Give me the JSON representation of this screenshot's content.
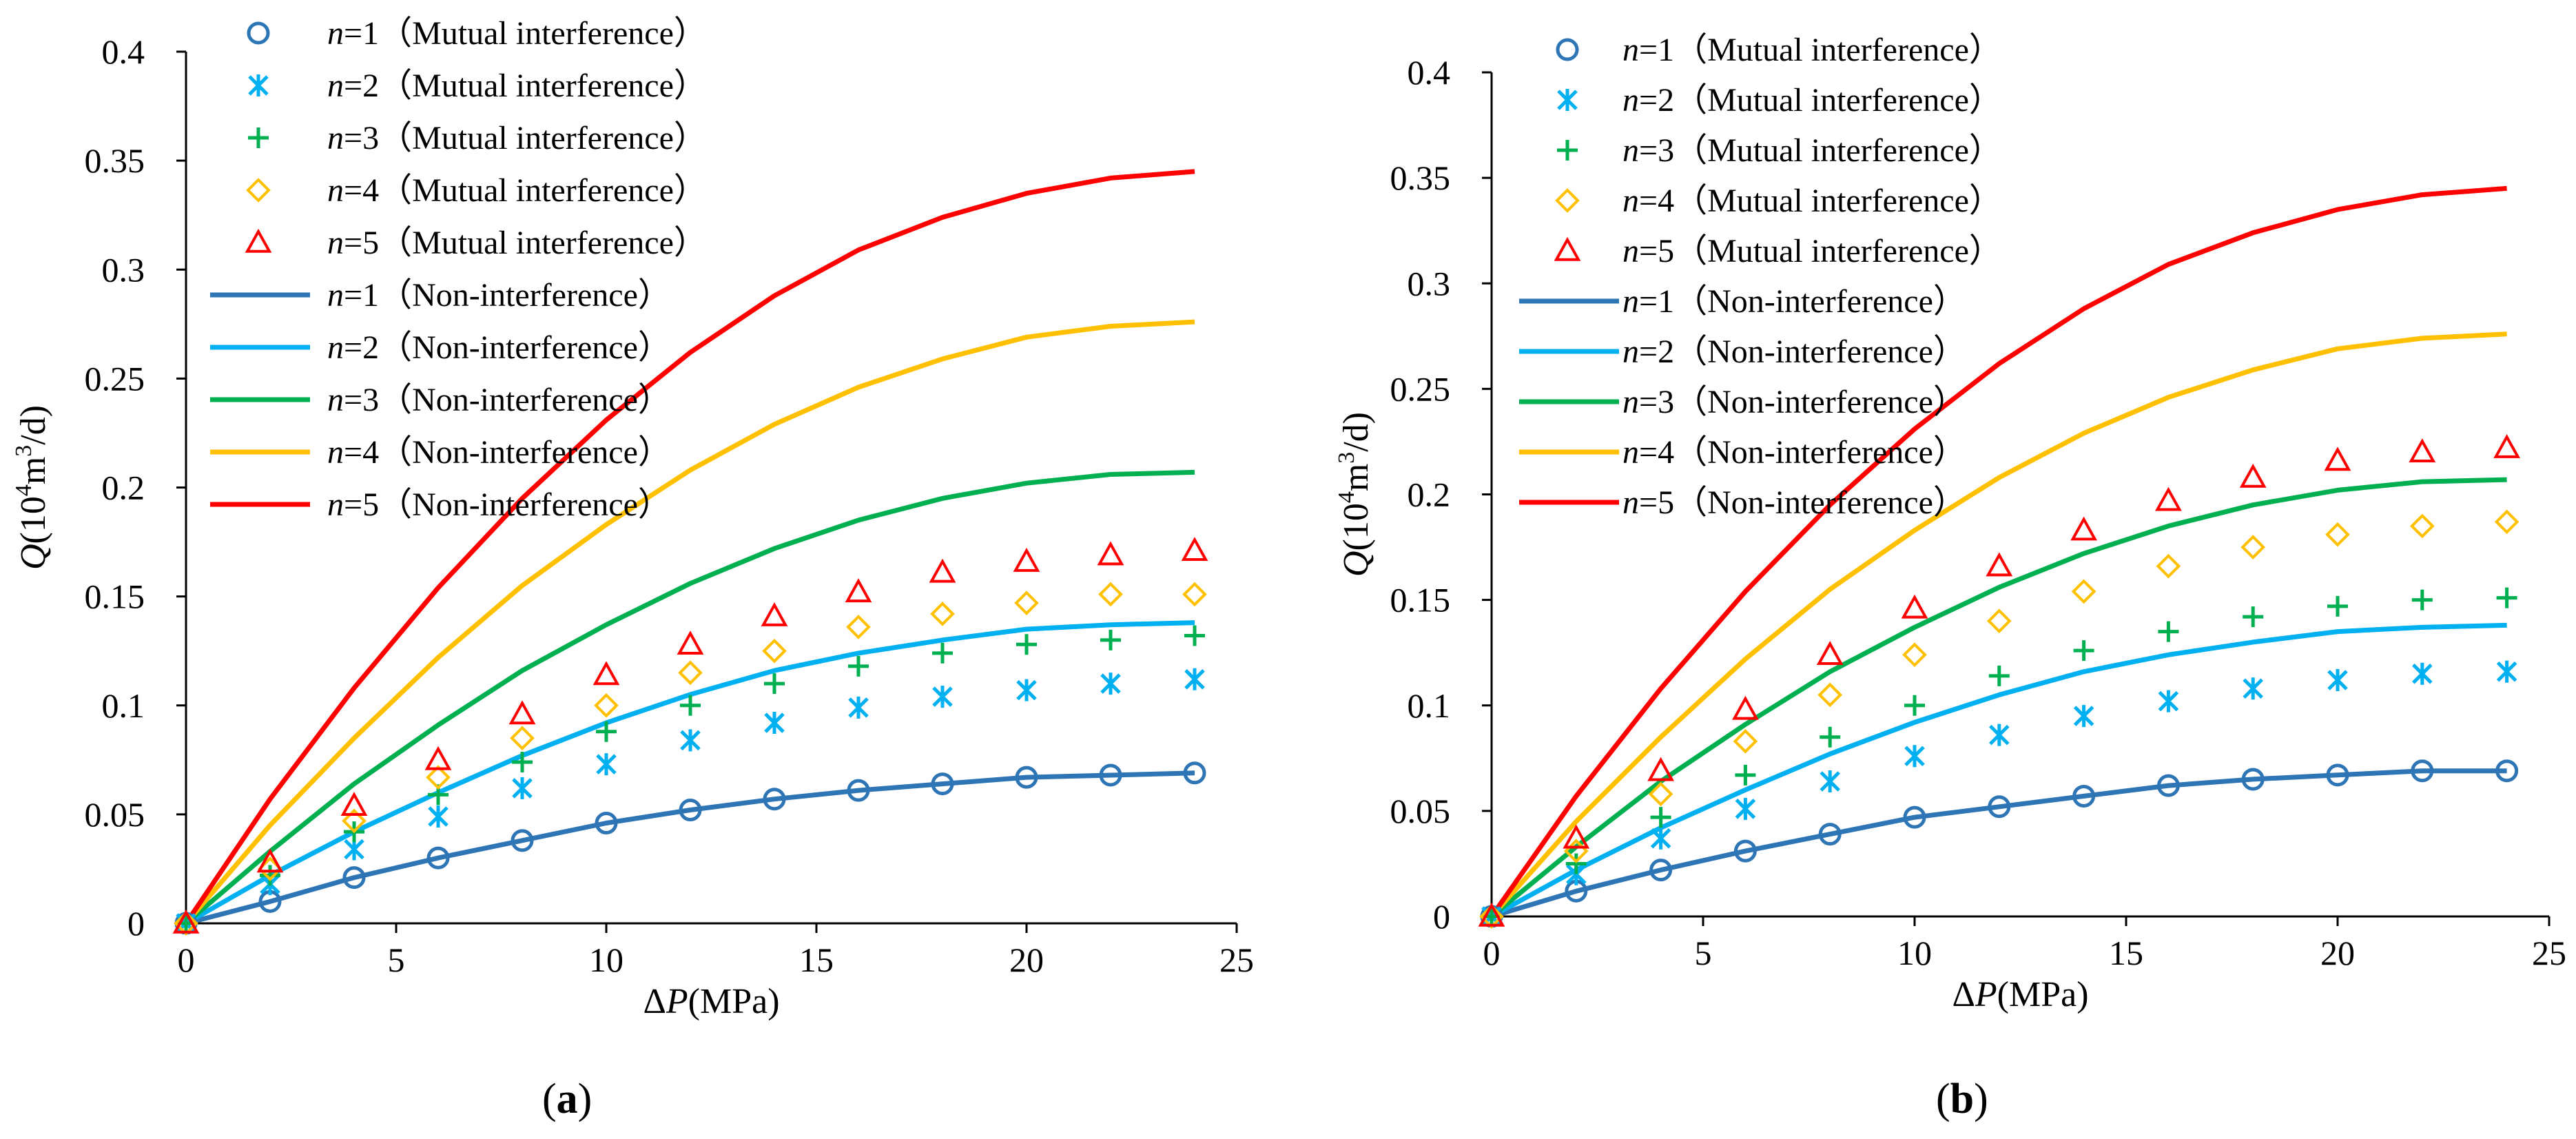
{
  "chart_data": [
    {
      "panel": "a",
      "panel_label": {
        "open": "(",
        "letter": "a",
        "close": ")"
      },
      "type": "line",
      "xlabel": {
        "prefix": "Δ",
        "var": "P",
        "unit": "(MPa)"
      },
      "ylabel": {
        "var": "Q",
        "unit_pre": "(10",
        "sup1": "4",
        "unit_mid": "m",
        "sup2": "3",
        "unit_post": "/d)"
      },
      "xlim": [
        0,
        25
      ],
      "ylim": [
        0,
        0.4
      ],
      "xticks": [
        "0",
        "5",
        "10",
        "15",
        "20",
        "25"
      ],
      "yticks": [
        "0",
        "0.05",
        "0.1",
        "0.15",
        "0.2",
        "0.25",
        "0.3",
        "0.35",
        "0.4"
      ],
      "legend_position": "top-left",
      "x": [
        0,
        2,
        4,
        6,
        8,
        10,
        12,
        14,
        16,
        18,
        20,
        22,
        24
      ],
      "series": [
        {
          "n": "1",
          "tag": "（Mutual interference）",
          "style": "marker",
          "marker": "circle",
          "color": "#2E75B6",
          "values": [
            0,
            0.01,
            0.021,
            0.03,
            0.038,
            0.046,
            0.052,
            0.057,
            0.061,
            0.064,
            0.067,
            0.068,
            0.069
          ]
        },
        {
          "n": "2",
          "tag": "（Mutual interference）",
          "style": "marker",
          "marker": "asterisk",
          "color": "#00B0F0",
          "values": [
            0,
            0.018,
            0.034,
            0.049,
            0.062,
            0.073,
            0.084,
            0.092,
            0.099,
            0.104,
            0.107,
            0.11,
            0.112
          ]
        },
        {
          "n": "3",
          "tag": "（Mutual interference）",
          "style": "marker",
          "marker": "plus",
          "color": "#00B050",
          "values": [
            0,
            0.022,
            0.042,
            0.059,
            0.074,
            0.088,
            0.1,
            0.11,
            0.118,
            0.124,
            0.128,
            0.13,
            0.132
          ]
        },
        {
          "n": "4",
          "tag": "（Mutual interference）",
          "style": "marker",
          "marker": "diamond",
          "color": "#FFC000",
          "values": [
            0,
            0.025,
            0.047,
            0.067,
            0.085,
            0.1,
            0.115,
            0.125,
            0.136,
            0.142,
            0.147,
            0.151,
            0.151
          ]
        },
        {
          "n": "5",
          "tag": "（Mutual interference）",
          "style": "marker",
          "marker": "triangle",
          "color": "#FF0000",
          "values": [
            0,
            0.028,
            0.054,
            0.075,
            0.096,
            0.114,
            0.128,
            0.141,
            0.152,
            0.161,
            0.166,
            0.169,
            0.171
          ]
        },
        {
          "n": "1",
          "tag": "（Non-interference）",
          "style": "line",
          "color": "#2E75B6",
          "values": [
            0,
            0.01,
            0.021,
            0.03,
            0.038,
            0.046,
            0.052,
            0.057,
            0.061,
            0.064,
            0.067,
            0.068,
            0.069
          ]
        },
        {
          "n": "2",
          "tag": "（Non-interference）",
          "style": "line",
          "color": "#00B0F0",
          "values": [
            0,
            0.022,
            0.042,
            0.06,
            0.077,
            0.092,
            0.105,
            0.116,
            0.124,
            0.13,
            0.135,
            0.137,
            0.138
          ]
        },
        {
          "n": "3",
          "tag": "（Non-interference）",
          "style": "line",
          "color": "#00B050",
          "values": [
            0,
            0.033,
            0.064,
            0.091,
            0.116,
            0.137,
            0.156,
            0.172,
            0.185,
            0.195,
            0.202,
            0.206,
            0.207
          ]
        },
        {
          "n": "4",
          "tag": "（Non-interference）",
          "style": "line",
          "color": "#FFC000",
          "values": [
            0,
            0.045,
            0.085,
            0.122,
            0.155,
            0.183,
            0.208,
            0.229,
            0.246,
            0.259,
            0.269,
            0.274,
            0.276
          ]
        },
        {
          "n": "5",
          "tag": "（Non-interference）",
          "style": "line",
          "color": "#FF0000",
          "values": [
            0,
            0.057,
            0.108,
            0.154,
            0.195,
            0.231,
            0.262,
            0.288,
            0.309,
            0.324,
            0.335,
            0.342,
            0.345
          ]
        }
      ]
    },
    {
      "panel": "b",
      "panel_label": {
        "open": "(",
        "letter": "b",
        "close": ")"
      },
      "type": "line",
      "xlabel": {
        "prefix": "Δ",
        "var": "P",
        "unit": "(MPa)"
      },
      "ylabel": {
        "var": "Q",
        "unit_pre": "(10",
        "sup1": "4",
        "unit_mid": "m",
        "sup2": "3",
        "unit_post": "/d)"
      },
      "xlim": [
        0,
        25
      ],
      "ylim": [
        0,
        0.4
      ],
      "xticks": [
        "0",
        "5",
        "10",
        "15",
        "20",
        "25"
      ],
      "yticks": [
        "0",
        "0.05",
        "0.1",
        "0.15",
        "0.2",
        "0.25",
        "0.3",
        "0.35",
        "0.4"
      ],
      "legend_position": "top-left",
      "x": [
        0,
        2,
        4,
        6,
        8,
        10,
        12,
        14,
        16,
        18,
        20,
        22,
        24
      ],
      "series": [
        {
          "n": "1",
          "tag": "（Mutual interference）",
          "style": "marker",
          "marker": "circle",
          "color": "#2E75B6",
          "values": [
            0,
            0.012,
            0.022,
            0.031,
            0.039,
            0.047,
            0.052,
            0.057,
            0.062,
            0.065,
            0.067,
            0.069,
            0.069
          ]
        },
        {
          "n": "2",
          "tag": "（Mutual interference）",
          "style": "marker",
          "marker": "asterisk",
          "color": "#00B0F0",
          "values": [
            0,
            0.02,
            0.037,
            0.051,
            0.064,
            0.076,
            0.086,
            0.095,
            0.102,
            0.108,
            0.112,
            0.115,
            0.116
          ]
        },
        {
          "n": "3",
          "tag": "（Mutual interference）",
          "style": "marker",
          "marker": "plus",
          "color": "#00B050",
          "values": [
            0,
            0.025,
            0.047,
            0.067,
            0.085,
            0.1,
            0.114,
            0.126,
            0.135,
            0.142,
            0.147,
            0.15,
            0.151
          ]
        },
        {
          "n": "4",
          "tag": "（Mutual interference）",
          "style": "marker",
          "marker": "diamond",
          "color": "#FFC000",
          "values": [
            0,
            0.031,
            0.058,
            0.083,
            0.105,
            0.124,
            0.14,
            0.154,
            0.166,
            0.175,
            0.181,
            0.185,
            0.187
          ]
        },
        {
          "n": "5",
          "tag": "（Mutual interference）",
          "style": "marker",
          "marker": "triangle",
          "color": "#FF0000",
          "values": [
            0,
            0.037,
            0.069,
            0.098,
            0.124,
            0.146,
            0.166,
            0.183,
            0.197,
            0.208,
            0.216,
            0.22,
            0.222
          ]
        },
        {
          "n": "1",
          "tag": "（Non-interference）",
          "style": "line",
          "color": "#2E75B6",
          "values": [
            0,
            0.012,
            0.022,
            0.031,
            0.039,
            0.047,
            0.052,
            0.057,
            0.062,
            0.065,
            0.067,
            0.069,
            0.069
          ]
        },
        {
          "n": "2",
          "tag": "（Non-interference）",
          "style": "line",
          "color": "#00B0F0",
          "values": [
            0,
            0.022,
            0.042,
            0.06,
            0.077,
            0.092,
            0.105,
            0.116,
            0.124,
            0.13,
            0.135,
            0.137,
            0.138
          ]
        },
        {
          "n": "3",
          "tag": "（Non-interference）",
          "style": "line",
          "color": "#00B050",
          "values": [
            0,
            0.033,
            0.064,
            0.091,
            0.116,
            0.137,
            0.156,
            0.172,
            0.185,
            0.195,
            0.202,
            0.206,
            0.207
          ]
        },
        {
          "n": "4",
          "tag": "（Non-interference）",
          "style": "line",
          "color": "#FFC000",
          "values": [
            0,
            0.045,
            0.085,
            0.122,
            0.155,
            0.183,
            0.208,
            0.229,
            0.246,
            0.259,
            0.269,
            0.274,
            0.276
          ]
        },
        {
          "n": "5",
          "tag": "（Non-interference）",
          "style": "line",
          "color": "#FF0000",
          "values": [
            0,
            0.057,
            0.108,
            0.154,
            0.195,
            0.231,
            0.262,
            0.288,
            0.309,
            0.324,
            0.335,
            0.342,
            0.345
          ]
        }
      ]
    }
  ]
}
